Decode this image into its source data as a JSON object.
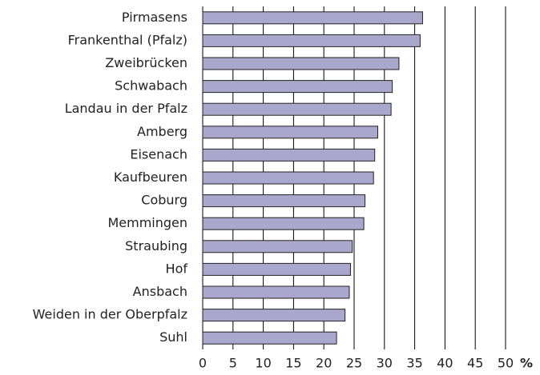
{
  "chart_data": {
    "type": "hbar",
    "categories": [
      "Pirmasens",
      "Frankenthal (Pfalz)",
      "Zweibrücken",
      "Schwabach",
      "Landau in der Pfalz",
      "Amberg",
      "Eisenach",
      "Kaufbeuren",
      "Coburg",
      "Memmingen",
      "Straubing",
      "Hof",
      "Ansbach",
      "Weiden in der Oberpfalz",
      "Suhl"
    ],
    "values": [
      36.3,
      35.9,
      32.4,
      31.3,
      31.1,
      28.9,
      28.4,
      28.2,
      26.8,
      26.6,
      24.7,
      24.4,
      24.2,
      23.5,
      22.1
    ],
    "color": "#a9a7cc",
    "xlabel": "%",
    "xlim": [
      0,
      50
    ],
    "xticks": [
      0,
      5,
      10,
      15,
      20,
      25,
      30,
      35,
      40,
      45,
      50
    ],
    "grid": true
  }
}
